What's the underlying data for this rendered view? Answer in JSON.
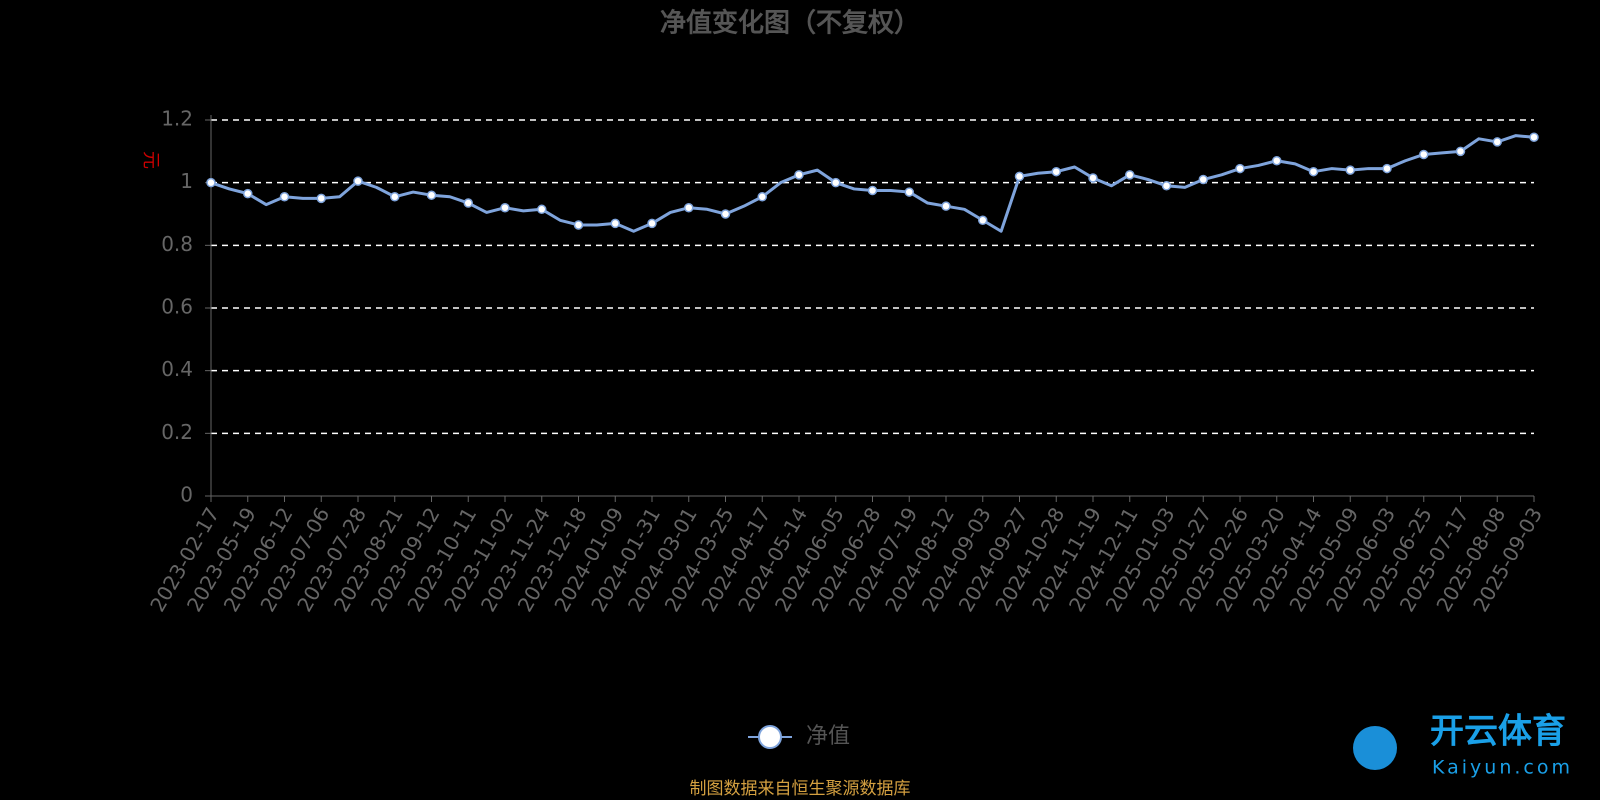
{
  "chart_data": {
    "type": "line",
    "title": "净值变化图（不复权）",
    "y_label": "元",
    "source": "制图数据来自恒生聚源数据库",
    "categories": [
      "2023-02-17",
      null,
      "2023-05-19",
      null,
      "2023-06-12",
      null,
      "2023-07-06",
      null,
      "2023-07-28",
      null,
      "2023-08-21",
      null,
      "2023-09-12",
      null,
      "2023-10-11",
      null,
      "2023-11-02",
      null,
      "2023-11-24",
      null,
      "2023-12-18",
      null,
      "2024-01-09",
      null,
      "2024-01-31",
      null,
      "2024-03-01",
      null,
      "2024-03-25",
      null,
      "2024-04-17",
      null,
      "2024-05-14",
      null,
      "2024-06-05",
      null,
      "2024-06-28",
      null,
      "2024-07-19",
      null,
      "2024-08-12",
      null,
      "2024-09-03",
      null,
      "2024-09-27",
      null,
      "2024-10-28",
      null,
      "2024-11-19",
      null,
      "2024-12-11",
      null,
      "2025-01-03",
      null,
      "2025-01-27",
      null,
      "2025-02-26",
      null,
      "2025-03-20",
      null,
      "2025-04-14",
      null,
      "2025-05-09",
      null,
      "2025-06-03",
      null,
      "2025-06-25",
      null,
      "2025-07-17",
      null,
      "2025-08-08",
      null,
      "2025-09-03"
    ],
    "series": [
      {
        "name": "净值",
        "color": "#7fa4dc",
        "values": [
          1.0,
          0.98,
          0.965,
          0.93,
          0.955,
          0.95,
          0.95,
          0.955,
          1.005,
          0.985,
          0.955,
          0.97,
          0.96,
          0.955,
          0.935,
          0.905,
          0.92,
          0.91,
          0.915,
          0.88,
          0.865,
          0.865,
          0.87,
          0.845,
          0.87,
          0.905,
          0.92,
          0.915,
          0.9,
          0.925,
          0.955,
          1.0,
          1.025,
          1.04,
          1.0,
          0.98,
          0.975,
          0.975,
          0.97,
          0.935,
          0.925,
          0.915,
          0.88,
          0.845,
          1.02,
          1.03,
          1.035,
          1.05,
          1.015,
          0.99,
          1.025,
          1.01,
          0.99,
          0.985,
          1.01,
          1.025,
          1.045,
          1.055,
          1.07,
          1.06,
          1.035,
          1.045,
          1.04,
          1.045,
          1.045,
          1.07,
          1.09,
          1.095,
          1.1,
          1.14,
          1.13,
          1.15,
          1.145
        ]
      }
    ],
    "ylim": [
      0,
      1.2
    ],
    "yticks": [
      0,
      0.2,
      0.4,
      0.6,
      0.8,
      1,
      1.2
    ],
    "grid": true
  },
  "watermark": {
    "title": "开云体育",
    "subtitle": "Kaiyun.com"
  }
}
